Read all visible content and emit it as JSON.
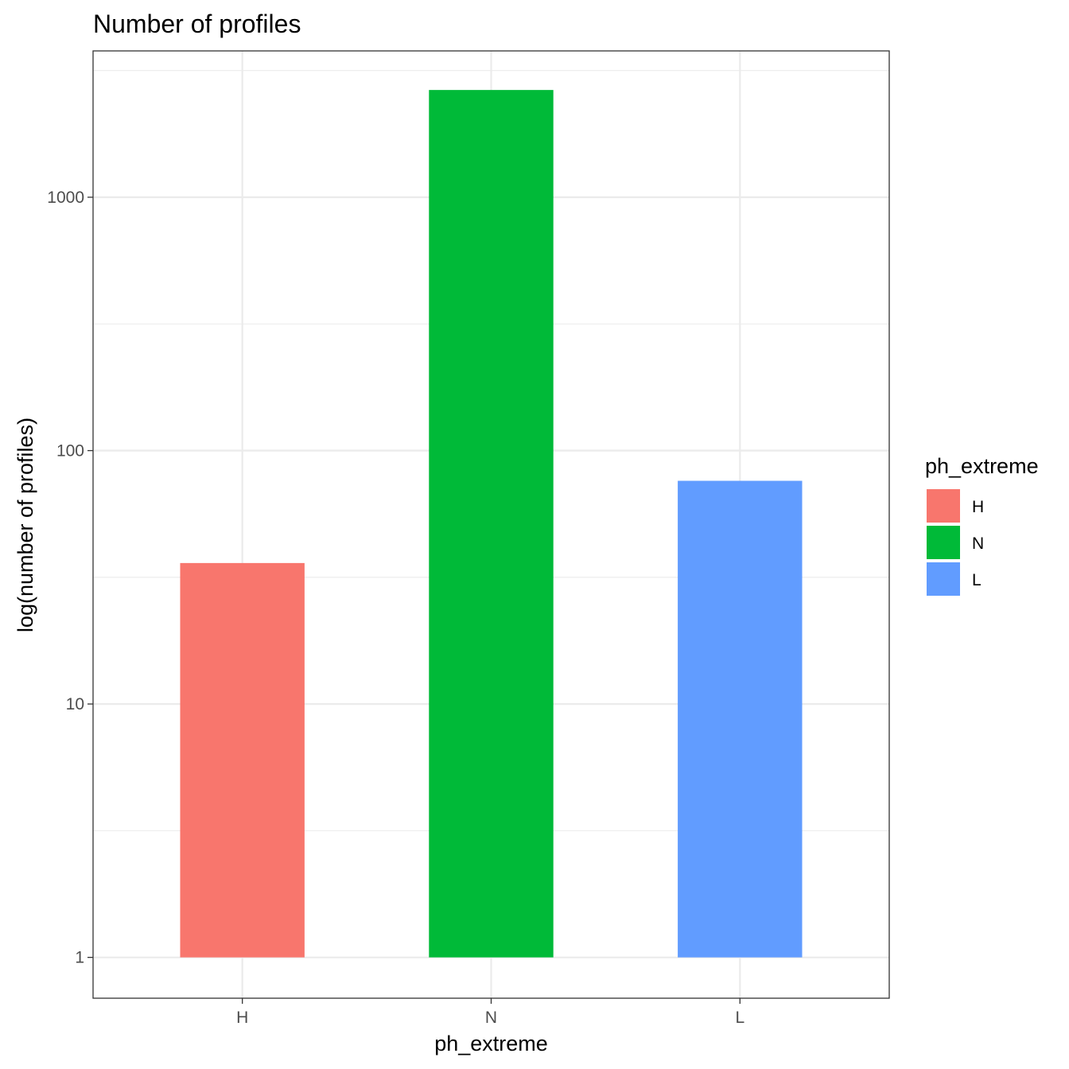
{
  "chart_data": {
    "type": "bar",
    "title": "Number of profiles",
    "xlabel": "ph_extreme",
    "ylabel": "log(number of profiles)",
    "categories": [
      "H",
      "N",
      "L"
    ],
    "values": [
      36,
      2650,
      76
    ],
    "colors": [
      "#F8766D",
      "#00BA38",
      "#619CFF"
    ],
    "y_scale": "log10",
    "ylim": [
      0.69,
      3780
    ],
    "y_ticks": [
      1,
      10,
      100,
      1000
    ],
    "y_tick_labels": [
      "1",
      "10",
      "100",
      "1000"
    ],
    "grid": true,
    "legend": {
      "title": "ph_extreme",
      "placement": "right",
      "entries": [
        "H",
        "N",
        "L"
      ]
    }
  }
}
